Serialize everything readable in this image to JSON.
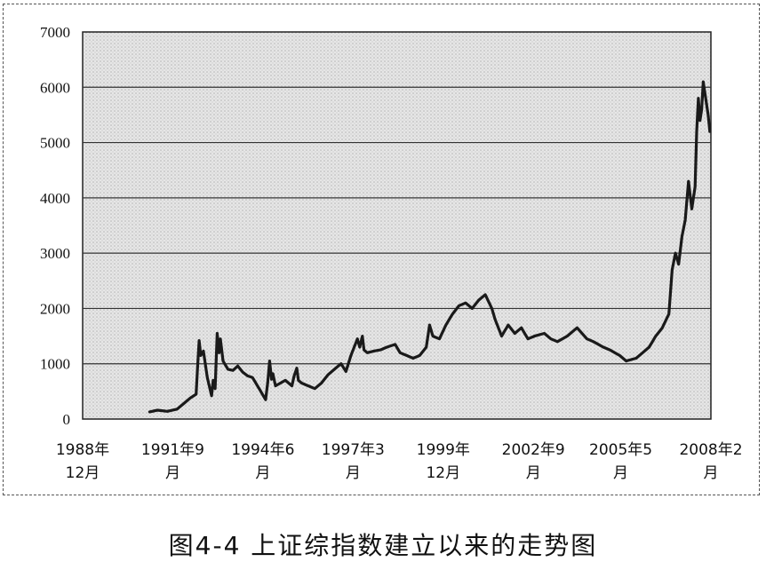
{
  "caption": "图4-4  上证综指数建立以来的走势图",
  "chart_data": {
    "type": "line",
    "title": "图4-4  上证综指数建立以来的走势图",
    "xlabel": "",
    "ylabel": "",
    "ylim": [
      0,
      7000
    ],
    "yticks": [
      0,
      1000,
      2000,
      3000,
      4000,
      5000,
      6000,
      7000
    ],
    "xticks": [
      {
        "x": 1988.917,
        "line1": "1988年",
        "line2": "12月"
      },
      {
        "x": 1991.667,
        "line1": "1991年9",
        "line2": "月"
      },
      {
        "x": 1994.417,
        "line1": "1994年6",
        "line2": "月"
      },
      {
        "x": 1997.167,
        "line1": "1997年3",
        "line2": "月"
      },
      {
        "x": 1999.917,
        "line1": "1999年",
        "line2": "12月"
      },
      {
        "x": 2002.667,
        "line1": "2002年9",
        "line2": "月"
      },
      {
        "x": 2005.333,
        "line1": "2005年5",
        "line2": "月"
      },
      {
        "x": 2008.083,
        "line1": "2008年2",
        "line2": "月"
      }
    ],
    "grid": true,
    "series": [
      {
        "x": [
          1990.96,
          1991.2,
          1991.5,
          1991.8,
          1992.0,
          1992.2,
          1992.38,
          1992.42,
          1992.47,
          1992.52,
          1992.6,
          1992.72,
          1992.85,
          1992.9,
          1992.96,
          1993.02,
          1993.08,
          1993.12,
          1993.2,
          1993.35,
          1993.5,
          1993.65,
          1993.8,
          1993.95,
          1994.1,
          1994.3,
          1994.5,
          1994.56,
          1994.62,
          1994.68,
          1994.72,
          1994.8,
          1994.95,
          1995.1,
          1995.3,
          1995.37,
          1995.45,
          1995.5,
          1995.6,
          1995.8,
          1996.0,
          1996.2,
          1996.4,
          1996.6,
          1996.8,
          1996.95,
          1997.1,
          1997.3,
          1997.37,
          1997.45,
          1997.5,
          1997.6,
          1997.8,
          1998.0,
          1998.2,
          1998.45,
          1998.6,
          1998.8,
          1999.0,
          1999.2,
          1999.4,
          1999.5,
          1999.6,
          1999.8,
          2000.0,
          2000.2,
          2000.4,
          2000.6,
          2000.8,
          2001.0,
          2001.2,
          2001.4,
          2001.5,
          2001.7,
          2001.9,
          2002.1,
          2002.3,
          2002.5,
          2002.7,
          2003.0,
          2003.2,
          2003.4,
          2003.7,
          2004.0,
          2004.3,
          2004.5,
          2004.8,
          2005.0,
          2005.3,
          2005.5,
          2005.8,
          2006.0,
          2006.2,
          2006.4,
          2006.6,
          2006.8,
          2006.9,
          2007.0,
          2007.1,
          2007.2,
          2007.3,
          2007.4,
          2007.5,
          2007.6,
          2007.65,
          2007.7,
          2007.75,
          2007.8,
          2007.85,
          2007.9,
          2008.0,
          2008.05
        ],
        "y": [
          130,
          160,
          140,
          180,
          280,
          380,
          450,
          900,
          1420,
          1150,
          1230,
          750,
          420,
          700,
          550,
          1550,
          1200,
          1450,
          1050,
          900,
          880,
          960,
          850,
          780,
          750,
          550,
          350,
          650,
          1050,
          720,
          820,
          600,
          650,
          700,
          600,
          780,
          920,
          700,
          650,
          600,
          550,
          650,
          800,
          900,
          1000,
          860,
          1150,
          1450,
          1300,
          1500,
          1250,
          1200,
          1230,
          1250,
          1300,
          1350,
          1200,
          1150,
          1100,
          1150,
          1300,
          1700,
          1500,
          1450,
          1700,
          1900,
          2050,
          2100,
          2000,
          2150,
          2250,
          2000,
          1800,
          1500,
          1700,
          1550,
          1650,
          1450,
          1500,
          1550,
          1450,
          1400,
          1500,
          1650,
          1450,
          1400,
          1300,
          1250,
          1150,
          1050,
          1100,
          1200,
          1300,
          1500,
          1650,
          1900,
          2700,
          3000,
          2800,
          3300,
          3600,
          4300,
          3800,
          4200,
          5200,
          5800,
          5400,
          5600,
          6100,
          5900,
          5500,
          5200
        ]
      }
    ]
  }
}
